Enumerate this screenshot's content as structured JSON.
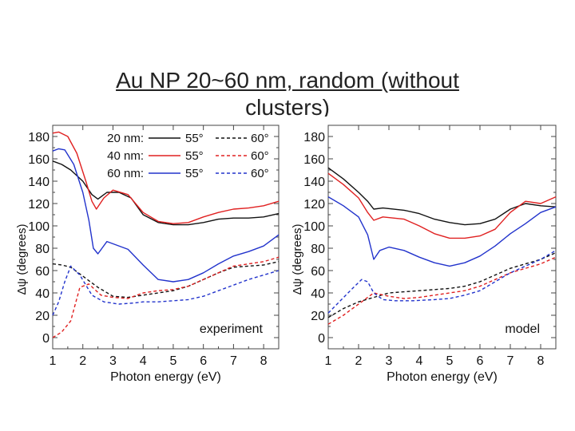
{
  "slide": {
    "title": "Au NP 20~60 nm, random (without clusters)"
  },
  "chart_data": [
    {
      "type": "line",
      "annotation": "experiment",
      "xlabel": "Photon energy (eV)",
      "ylabel": "Δψ (degrees)",
      "xlim": [
        1,
        8.5
      ],
      "ylim": [
        -10,
        190
      ],
      "xticks": [
        1,
        2,
        3,
        4,
        5,
        6,
        7,
        8
      ],
      "yticks": [
        0,
        20,
        40,
        60,
        80,
        100,
        120,
        140,
        160,
        180
      ],
      "legend": {
        "placement": "top-right",
        "rows": [
          {
            "label": "20 nm:",
            "a": "55°",
            "b": "60°",
            "color": "#111111"
          },
          {
            "label": "40 nm:",
            "a": "55°",
            "b": "60°",
            "color": "#e02020"
          },
          {
            "label": "60 nm:",
            "a": "55°",
            "b": "60°",
            "color": "#2233cc"
          }
        ]
      },
      "series": [
        {
          "size": "20 nm",
          "angle": "55°",
          "color": "#111111",
          "dash": false,
          "x": [
            1,
            1.3,
            1.6,
            2.0,
            2.3,
            2.5,
            2.8,
            3.2,
            3.6,
            4.0,
            4.5,
            5.0,
            5.5,
            6.0,
            6.5,
            7.0,
            7.5,
            8.0,
            8.5
          ],
          "y": [
            158,
            155,
            150,
            140,
            128,
            124,
            130,
            130,
            125,
            110,
            103,
            101,
            101,
            103,
            106,
            107,
            107,
            108,
            111
          ]
        },
        {
          "size": "40 nm",
          "angle": "55°",
          "color": "#e02020",
          "dash": false,
          "x": [
            1,
            1.2,
            1.5,
            1.8,
            2.1,
            2.3,
            2.45,
            2.7,
            3.0,
            3.5,
            4.0,
            4.5,
            5.0,
            5.5,
            6.0,
            6.5,
            7.0,
            7.5,
            8.0,
            8.5
          ],
          "y": [
            183,
            184,
            180,
            165,
            140,
            122,
            115,
            125,
            132,
            128,
            112,
            104,
            102,
            103,
            108,
            112,
            115,
            116,
            118,
            122
          ]
        },
        {
          "size": "60 nm",
          "angle": "55°",
          "color": "#2233cc",
          "dash": false,
          "x": [
            1,
            1.2,
            1.4,
            1.7,
            2.0,
            2.2,
            2.35,
            2.5,
            2.8,
            3.5,
            4.0,
            4.5,
            5.0,
            5.5,
            6.0,
            6.5,
            7.0,
            7.5,
            8.0,
            8.5
          ],
          "y": [
            167,
            169,
            168,
            155,
            130,
            105,
            80,
            75,
            86,
            79,
            65,
            52,
            50,
            52,
            58,
            66,
            73,
            77,
            82,
            92
          ]
        },
        {
          "size": "20 nm",
          "angle": "60°",
          "color": "#111111",
          "dash": true,
          "x": [
            1,
            1.3,
            1.6,
            2.0,
            2.5,
            3.0,
            3.5,
            4.0,
            4.5,
            5.0,
            5.5,
            6.0,
            6.5,
            7.0,
            7.5,
            8.0,
            8.5
          ],
          "y": [
            66,
            65,
            63,
            55,
            45,
            37,
            36,
            38,
            40,
            42,
            46,
            52,
            58,
            63,
            64,
            65,
            68
          ]
        },
        {
          "size": "40 nm",
          "angle": "60°",
          "color": "#e02020",
          "dash": true,
          "x": [
            1,
            1.3,
            1.6,
            1.9,
            2.2,
            2.6,
            3.0,
            3.5,
            4.0,
            4.5,
            5.0,
            5.5,
            6.0,
            6.5,
            7.0,
            7.5,
            8.0,
            8.5
          ],
          "y": [
            0,
            5,
            15,
            45,
            48,
            38,
            36,
            35,
            40,
            42,
            43,
            46,
            52,
            58,
            64,
            66,
            68,
            72
          ]
        },
        {
          "size": "60 nm",
          "angle": "60°",
          "color": "#2233cc",
          "dash": true,
          "x": [
            1,
            1.2,
            1.4,
            1.6,
            1.9,
            2.3,
            2.7,
            3.2,
            3.7,
            4.0,
            4.5,
            5.0,
            5.5,
            6.0,
            6.5,
            7.0,
            7.5,
            8.0,
            8.5
          ],
          "y": [
            20,
            32,
            50,
            64,
            56,
            38,
            32,
            30,
            31,
            32,
            32,
            33,
            34,
            37,
            42,
            47,
            52,
            56,
            60
          ]
        }
      ]
    },
    {
      "type": "line",
      "annotation": "model",
      "xlabel": "Photon energy (eV)",
      "ylabel": "Δψ (degrees)",
      "xlim": [
        1,
        8.5
      ],
      "ylim": [
        -10,
        190
      ],
      "xticks": [
        1,
        2,
        3,
        4,
        5,
        6,
        7,
        8
      ],
      "yticks": [
        0,
        20,
        40,
        60,
        80,
        100,
        120,
        140,
        160,
        180
      ],
      "series": [
        {
          "size": "20 nm",
          "angle": "55°",
          "color": "#111111",
          "dash": false,
          "x": [
            1,
            1.5,
            2.0,
            2.3,
            2.5,
            2.8,
            3.5,
            4.0,
            4.5,
            5.0,
            5.5,
            6.0,
            6.5,
            7.0,
            7.5,
            8.0,
            8.5
          ],
          "y": [
            152,
            142,
            130,
            122,
            115,
            116,
            114,
            111,
            106,
            103,
            101,
            102,
            106,
            115,
            120,
            118,
            117
          ]
        },
        {
          "size": "40 nm",
          "angle": "55°",
          "color": "#e02020",
          "dash": false,
          "x": [
            1,
            1.5,
            2.0,
            2.3,
            2.5,
            2.8,
            3.5,
            4.0,
            4.5,
            5.0,
            5.5,
            6.0,
            6.5,
            7.0,
            7.5,
            8.0,
            8.5
          ],
          "y": [
            147,
            137,
            125,
            112,
            105,
            108,
            106,
            100,
            93,
            89,
            89,
            91,
            97,
            112,
            122,
            120,
            126
          ]
        },
        {
          "size": "60 nm",
          "angle": "55°",
          "color": "#2233cc",
          "dash": false,
          "x": [
            1,
            1.5,
            2.0,
            2.3,
            2.5,
            2.7,
            3.0,
            3.5,
            4.0,
            4.5,
            5.0,
            5.5,
            6.0,
            6.5,
            7.0,
            7.5,
            8.0,
            8.5
          ],
          "y": [
            126,
            118,
            108,
            92,
            70,
            78,
            81,
            78,
            72,
            67,
            64,
            67,
            73,
            82,
            93,
            102,
            112,
            117
          ]
        },
        {
          "size": "20 nm",
          "angle": "60°",
          "color": "#111111",
          "dash": true,
          "x": [
            1,
            1.5,
            2.0,
            2.5,
            3.0,
            3.5,
            4.0,
            4.5,
            5.0,
            5.5,
            6.0,
            6.5,
            7.0,
            7.5,
            8.0,
            8.5
          ],
          "y": [
            18,
            26,
            32,
            36,
            40,
            41,
            42,
            43,
            44,
            46,
            50,
            56,
            62,
            66,
            70,
            76
          ]
        },
        {
          "size": "40 nm",
          "angle": "60°",
          "color": "#e02020",
          "dash": true,
          "x": [
            1,
            1.5,
            2.0,
            2.5,
            3.0,
            3.5,
            4.0,
            4.5,
            5.0,
            5.5,
            6.0,
            6.5,
            7.0,
            7.5,
            8.0,
            8.5
          ],
          "y": [
            12,
            20,
            30,
            40,
            37,
            35,
            36,
            38,
            40,
            42,
            46,
            52,
            58,
            62,
            66,
            72
          ]
        },
        {
          "size": "60 nm",
          "angle": "60°",
          "color": "#2233cc",
          "dash": true,
          "x": [
            1,
            1.4,
            1.8,
            2.1,
            2.3,
            2.5,
            2.8,
            3.2,
            3.8,
            4.5,
            5.0,
            5.5,
            6.0,
            6.5,
            7.0,
            7.5,
            8.0,
            8.5
          ],
          "y": [
            22,
            33,
            44,
            52,
            50,
            40,
            34,
            33,
            33,
            34,
            35,
            38,
            42,
            50,
            58,
            64,
            70,
            78
          ]
        }
      ]
    }
  ]
}
